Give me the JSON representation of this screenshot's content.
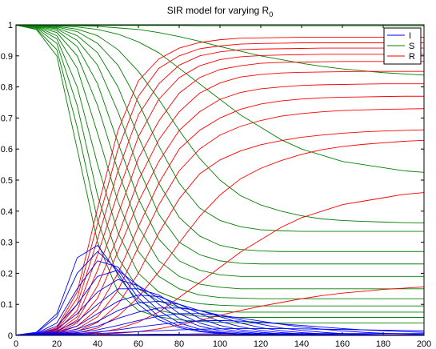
{
  "chart_data": {
    "type": "line",
    "title": "SIR model for varying R",
    "title_subscript": "0",
    "xlabel": "",
    "ylabel": "",
    "xlim": [
      0,
      200
    ],
    "ylim": [
      0,
      1
    ],
    "x_ticks": [
      0,
      20,
      40,
      60,
      80,
      100,
      120,
      140,
      160,
      180,
      200
    ],
    "y_ticks": [
      0,
      0.1,
      0.2,
      0.3,
      0.4,
      0.5,
      0.6,
      0.7,
      0.8,
      0.9,
      1
    ],
    "grid": false,
    "legend_position": "top-right",
    "legend": [
      {
        "label": "I",
        "color": "#0000ff"
      },
      {
        "label": "S",
        "color": "#008000"
      },
      {
        "label": "R",
        "color": "#ff0000"
      }
    ],
    "x": [
      0,
      10,
      20,
      30,
      40,
      50,
      60,
      70,
      80,
      90,
      100,
      110,
      120,
      130,
      140,
      150,
      160,
      170,
      180,
      190,
      200
    ],
    "series_groups": [
      {
        "name": "I",
        "color": "#0000ff",
        "curves": [
          [
            0.001,
            0.01,
            0.07,
            0.25,
            0.29,
            0.2,
            0.1,
            0.05,
            0.025,
            0.012,
            0.006,
            0.003,
            0.002,
            0.001,
            0.0005,
            0,
            0,
            0,
            0,
            0,
            0
          ],
          [
            0.001,
            0.008,
            0.06,
            0.2,
            0.27,
            0.21,
            0.12,
            0.06,
            0.03,
            0.015,
            0.008,
            0.004,
            0.002,
            0.001,
            0.0005,
            0,
            0,
            0,
            0,
            0,
            0
          ],
          [
            0.001,
            0.006,
            0.04,
            0.15,
            0.24,
            0.22,
            0.14,
            0.08,
            0.04,
            0.02,
            0.01,
            0.005,
            0.003,
            0.002,
            0.001,
            0,
            0,
            0,
            0,
            0,
            0
          ],
          [
            0.001,
            0.005,
            0.03,
            0.1,
            0.19,
            0.21,
            0.16,
            0.1,
            0.055,
            0.03,
            0.015,
            0.008,
            0.004,
            0.002,
            0.001,
            0,
            0,
            0,
            0,
            0,
            0
          ],
          [
            0.001,
            0.004,
            0.02,
            0.07,
            0.14,
            0.18,
            0.16,
            0.12,
            0.07,
            0.04,
            0.022,
            0.012,
            0.006,
            0.003,
            0.002,
            0.001,
            0,
            0,
            0,
            0,
            0
          ],
          [
            0.001,
            0.003,
            0.014,
            0.045,
            0.1,
            0.15,
            0.15,
            0.13,
            0.09,
            0.055,
            0.032,
            0.018,
            0.01,
            0.005,
            0.003,
            0.002,
            0.001,
            0,
            0,
            0,
            0
          ],
          [
            0.001,
            0.003,
            0.01,
            0.03,
            0.07,
            0.11,
            0.13,
            0.125,
            0.1,
            0.07,
            0.045,
            0.028,
            0.016,
            0.009,
            0.005,
            0.003,
            0.002,
            0.001,
            0,
            0,
            0
          ],
          [
            0.001,
            0.002,
            0.007,
            0.02,
            0.045,
            0.08,
            0.105,
            0.11,
            0.1,
            0.08,
            0.06,
            0.04,
            0.025,
            0.015,
            0.009,
            0.005,
            0.003,
            0.002,
            0.001,
            0,
            0
          ],
          [
            0.001,
            0.002,
            0.005,
            0.014,
            0.03,
            0.055,
            0.075,
            0.088,
            0.088,
            0.08,
            0.065,
            0.05,
            0.036,
            0.024,
            0.016,
            0.01,
            0.006,
            0.004,
            0.002,
            0.001,
            0.001
          ],
          [
            0.001,
            0.002,
            0.004,
            0.009,
            0.018,
            0.032,
            0.048,
            0.062,
            0.07,
            0.07,
            0.065,
            0.056,
            0.046,
            0.036,
            0.027,
            0.02,
            0.014,
            0.01,
            0.007,
            0.005,
            0.003
          ],
          [
            0.001,
            0.002,
            0.003,
            0.006,
            0.011,
            0.018,
            0.027,
            0.035,
            0.042,
            0.047,
            0.048,
            0.046,
            0.042,
            0.037,
            0.032,
            0.027,
            0.022,
            0.018,
            0.015,
            0.012,
            0.01
          ],
          [
            0.001,
            0.001,
            0.002,
            0.004,
            0.006,
            0.009,
            0.012,
            0.015,
            0.018,
            0.02,
            0.021,
            0.022,
            0.022,
            0.022,
            0.021,
            0.02,
            0.019,
            0.018,
            0.017,
            0.016,
            0.015
          ],
          [
            0.001,
            0.001,
            0.001,
            0.002,
            0.002,
            0.003,
            0.003,
            0.004,
            0.004,
            0.005,
            0.005,
            0.005,
            0.006,
            0.006,
            0.006,
            0.006,
            0.006,
            0.006,
            0.006,
            0.006,
            0.006
          ],
          [
            0.001,
            0.001,
            0.001,
            0.001,
            0.001,
            0.001,
            0.001,
            0.001,
            0.001,
            0.001,
            0.001,
            0.001,
            0.001,
            0.001,
            0.001,
            0.001,
            0.001,
            0.001,
            0.001,
            0.001,
            0.001
          ]
        ]
      },
      {
        "name": "S",
        "color": "#008000",
        "curves": [
          [
            0.999,
            0.985,
            0.9,
            0.6,
            0.3,
            0.14,
            0.08,
            0.06,
            0.05,
            0.045,
            0.042,
            0.04,
            0.04,
            0.04,
            0.04,
            0.04,
            0.04,
            0.04,
            0.04,
            0.04,
            0.04
          ],
          [
            0.999,
            0.987,
            0.92,
            0.67,
            0.37,
            0.19,
            0.11,
            0.08,
            0.068,
            0.062,
            0.06,
            0.058,
            0.058,
            0.058,
            0.058,
            0.058,
            0.058,
            0.058,
            0.058,
            0.058,
            0.058
          ],
          [
            0.999,
            0.99,
            0.94,
            0.74,
            0.45,
            0.25,
            0.15,
            0.11,
            0.09,
            0.08,
            0.077,
            0.075,
            0.075,
            0.075,
            0.075,
            0.075,
            0.075,
            0.075,
            0.075,
            0.075,
            0.075
          ],
          [
            0.999,
            0.992,
            0.955,
            0.8,
            0.55,
            0.33,
            0.2,
            0.14,
            0.115,
            0.102,
            0.097,
            0.095,
            0.095,
            0.095,
            0.095,
            0.095,
            0.095,
            0.095,
            0.095,
            0.095,
            0.095
          ],
          [
            0.999,
            0.994,
            0.965,
            0.86,
            0.65,
            0.43,
            0.27,
            0.19,
            0.15,
            0.13,
            0.122,
            0.12,
            0.118,
            0.118,
            0.118,
            0.118,
            0.118,
            0.118,
            0.118,
            0.118,
            0.118
          ],
          [
            0.999,
            0.995,
            0.975,
            0.9,
            0.74,
            0.53,
            0.35,
            0.24,
            0.19,
            0.165,
            0.155,
            0.15,
            0.15,
            0.15,
            0.15,
            0.15,
            0.15,
            0.15,
            0.15,
            0.15,
            0.15
          ],
          [
            0.999,
            0.996,
            0.982,
            0.93,
            0.81,
            0.62,
            0.44,
            0.31,
            0.24,
            0.21,
            0.195,
            0.19,
            0.19,
            0.19,
            0.19,
            0.19,
            0.19,
            0.19,
            0.19,
            0.19,
            0.19
          ],
          [
            0.999,
            0.997,
            0.987,
            0.95,
            0.87,
            0.72,
            0.54,
            0.39,
            0.3,
            0.26,
            0.24,
            0.232,
            0.23,
            0.23,
            0.23,
            0.23,
            0.23,
            0.23,
            0.23,
            0.23,
            0.23
          ],
          [
            0.999,
            0.998,
            0.99,
            0.965,
            0.91,
            0.8,
            0.64,
            0.49,
            0.38,
            0.32,
            0.29,
            0.277,
            0.272,
            0.27,
            0.27,
            0.27,
            0.27,
            0.27,
            0.27,
            0.27,
            0.27
          ],
          [
            0.999,
            0.998,
            0.993,
            0.978,
            0.94,
            0.87,
            0.75,
            0.61,
            0.49,
            0.41,
            0.37,
            0.35,
            0.34,
            0.337,
            0.335,
            0.335,
            0.335,
            0.335,
            0.335,
            0.335,
            0.335
          ],
          [
            0.999,
            0.998,
            0.995,
            0.986,
            0.965,
            0.92,
            0.85,
            0.76,
            0.66,
            0.57,
            0.5,
            0.45,
            0.42,
            0.4,
            0.385,
            0.375,
            0.37,
            0.367,
            0.365,
            0.363,
            0.362
          ],
          [
            0.999,
            0.999,
            0.997,
            0.993,
            0.985,
            0.97,
            0.945,
            0.91,
            0.86,
            0.81,
            0.76,
            0.71,
            0.67,
            0.63,
            0.6,
            0.58,
            0.56,
            0.55,
            0.54,
            0.53,
            0.525
          ],
          [
            0.999,
            0.999,
            0.998,
            0.997,
            0.995,
            0.99,
            0.985,
            0.975,
            0.962,
            0.947,
            0.93,
            0.915,
            0.9,
            0.888,
            0.876,
            0.866,
            0.858,
            0.852,
            0.846,
            0.842,
            0.838
          ],
          [
            0.999,
            0.999,
            0.999,
            0.998,
            0.998,
            0.998,
            0.998,
            0.998,
            0.998,
            0.997,
            0.997,
            0.997,
            0.997,
            0.997,
            0.997,
            0.997,
            0.997,
            0.997,
            0.997,
            0.997,
            0.997
          ]
        ]
      },
      {
        "name": "R",
        "color": "#ff0000",
        "curves": [
          [
            0,
            0.003,
            0.025,
            0.14,
            0.41,
            0.66,
            0.82,
            0.89,
            0.925,
            0.943,
            0.952,
            0.957,
            0.958,
            0.959,
            0.96,
            0.96,
            0.96,
            0.96,
            0.96,
            0.96,
            0.96
          ],
          [
            0,
            0.003,
            0.022,
            0.12,
            0.36,
            0.6,
            0.77,
            0.86,
            0.9,
            0.923,
            0.932,
            0.938,
            0.94,
            0.941,
            0.942,
            0.942,
            0.942,
            0.942,
            0.942,
            0.942,
            0.942
          ],
          [
            0,
            0.002,
            0.018,
            0.1,
            0.31,
            0.53,
            0.71,
            0.81,
            0.87,
            0.9,
            0.913,
            0.92,
            0.922,
            0.923,
            0.924,
            0.925,
            0.925,
            0.925,
            0.925,
            0.925,
            0.925
          ],
          [
            0,
            0.002,
            0.015,
            0.08,
            0.26,
            0.46,
            0.64,
            0.76,
            0.83,
            0.868,
            0.888,
            0.897,
            0.901,
            0.903,
            0.904,
            0.905,
            0.905,
            0.905,
            0.905,
            0.905,
            0.905
          ],
          [
            0,
            0.002,
            0.012,
            0.06,
            0.21,
            0.39,
            0.57,
            0.69,
            0.78,
            0.83,
            0.856,
            0.868,
            0.876,
            0.879,
            0.88,
            0.881,
            0.882,
            0.882,
            0.882,
            0.882,
            0.882
          ],
          [
            0,
            0.002,
            0.01,
            0.05,
            0.16,
            0.32,
            0.5,
            0.63,
            0.72,
            0.78,
            0.813,
            0.832,
            0.84,
            0.845,
            0.847,
            0.848,
            0.849,
            0.85,
            0.85,
            0.85,
            0.85
          ],
          [
            0,
            0.001,
            0.008,
            0.04,
            0.12,
            0.27,
            0.43,
            0.56,
            0.66,
            0.72,
            0.76,
            0.782,
            0.794,
            0.8,
            0.805,
            0.807,
            0.808,
            0.809,
            0.81,
            0.81,
            0.81
          ],
          [
            0,
            0.001,
            0.006,
            0.03,
            0.085,
            0.2,
            0.35,
            0.49,
            0.6,
            0.66,
            0.7,
            0.728,
            0.745,
            0.755,
            0.761,
            0.765,
            0.767,
            0.768,
            0.769,
            0.77,
            0.77
          ],
          [
            0,
            0.001,
            0.005,
            0.021,
            0.06,
            0.145,
            0.285,
            0.42,
            0.53,
            0.6,
            0.645,
            0.673,
            0.692,
            0.706,
            0.714,
            0.72,
            0.724,
            0.726,
            0.728,
            0.729,
            0.73
          ],
          [
            0,
            0.001,
            0.004,
            0.013,
            0.042,
            0.1,
            0.2,
            0.33,
            0.44,
            0.52,
            0.565,
            0.594,
            0.614,
            0.627,
            0.638,
            0.645,
            0.651,
            0.655,
            0.658,
            0.66,
            0.662
          ],
          [
            0,
            0,
            0.002,
            0.008,
            0.024,
            0.062,
            0.123,
            0.205,
            0.298,
            0.383,
            0.452,
            0.504,
            0.538,
            0.563,
            0.583,
            0.598,
            0.608,
            0.615,
            0.62,
            0.625,
            0.628
          ],
          [
            0,
            0,
            0.001,
            0.003,
            0.009,
            0.021,
            0.043,
            0.075,
            0.122,
            0.17,
            0.219,
            0.268,
            0.308,
            0.348,
            0.379,
            0.4,
            0.421,
            0.432,
            0.443,
            0.454,
            0.46
          ],
          [
            0,
            0,
            0.001,
            0.001,
            0.003,
            0.007,
            0.012,
            0.021,
            0.034,
            0.048,
            0.065,
            0.08,
            0.094,
            0.106,
            0.118,
            0.128,
            0.136,
            0.142,
            0.148,
            0.152,
            0.156
          ],
          [
            0,
            0,
            0,
            0,
            0.001,
            0.001,
            0.001,
            0.001,
            0.001,
            0.002,
            0.002,
            0.002,
            0.002,
            0.002,
            0.002,
            0.002,
            0.002,
            0.002,
            0.002,
            0.002,
            0.002
          ]
        ]
      }
    ]
  }
}
